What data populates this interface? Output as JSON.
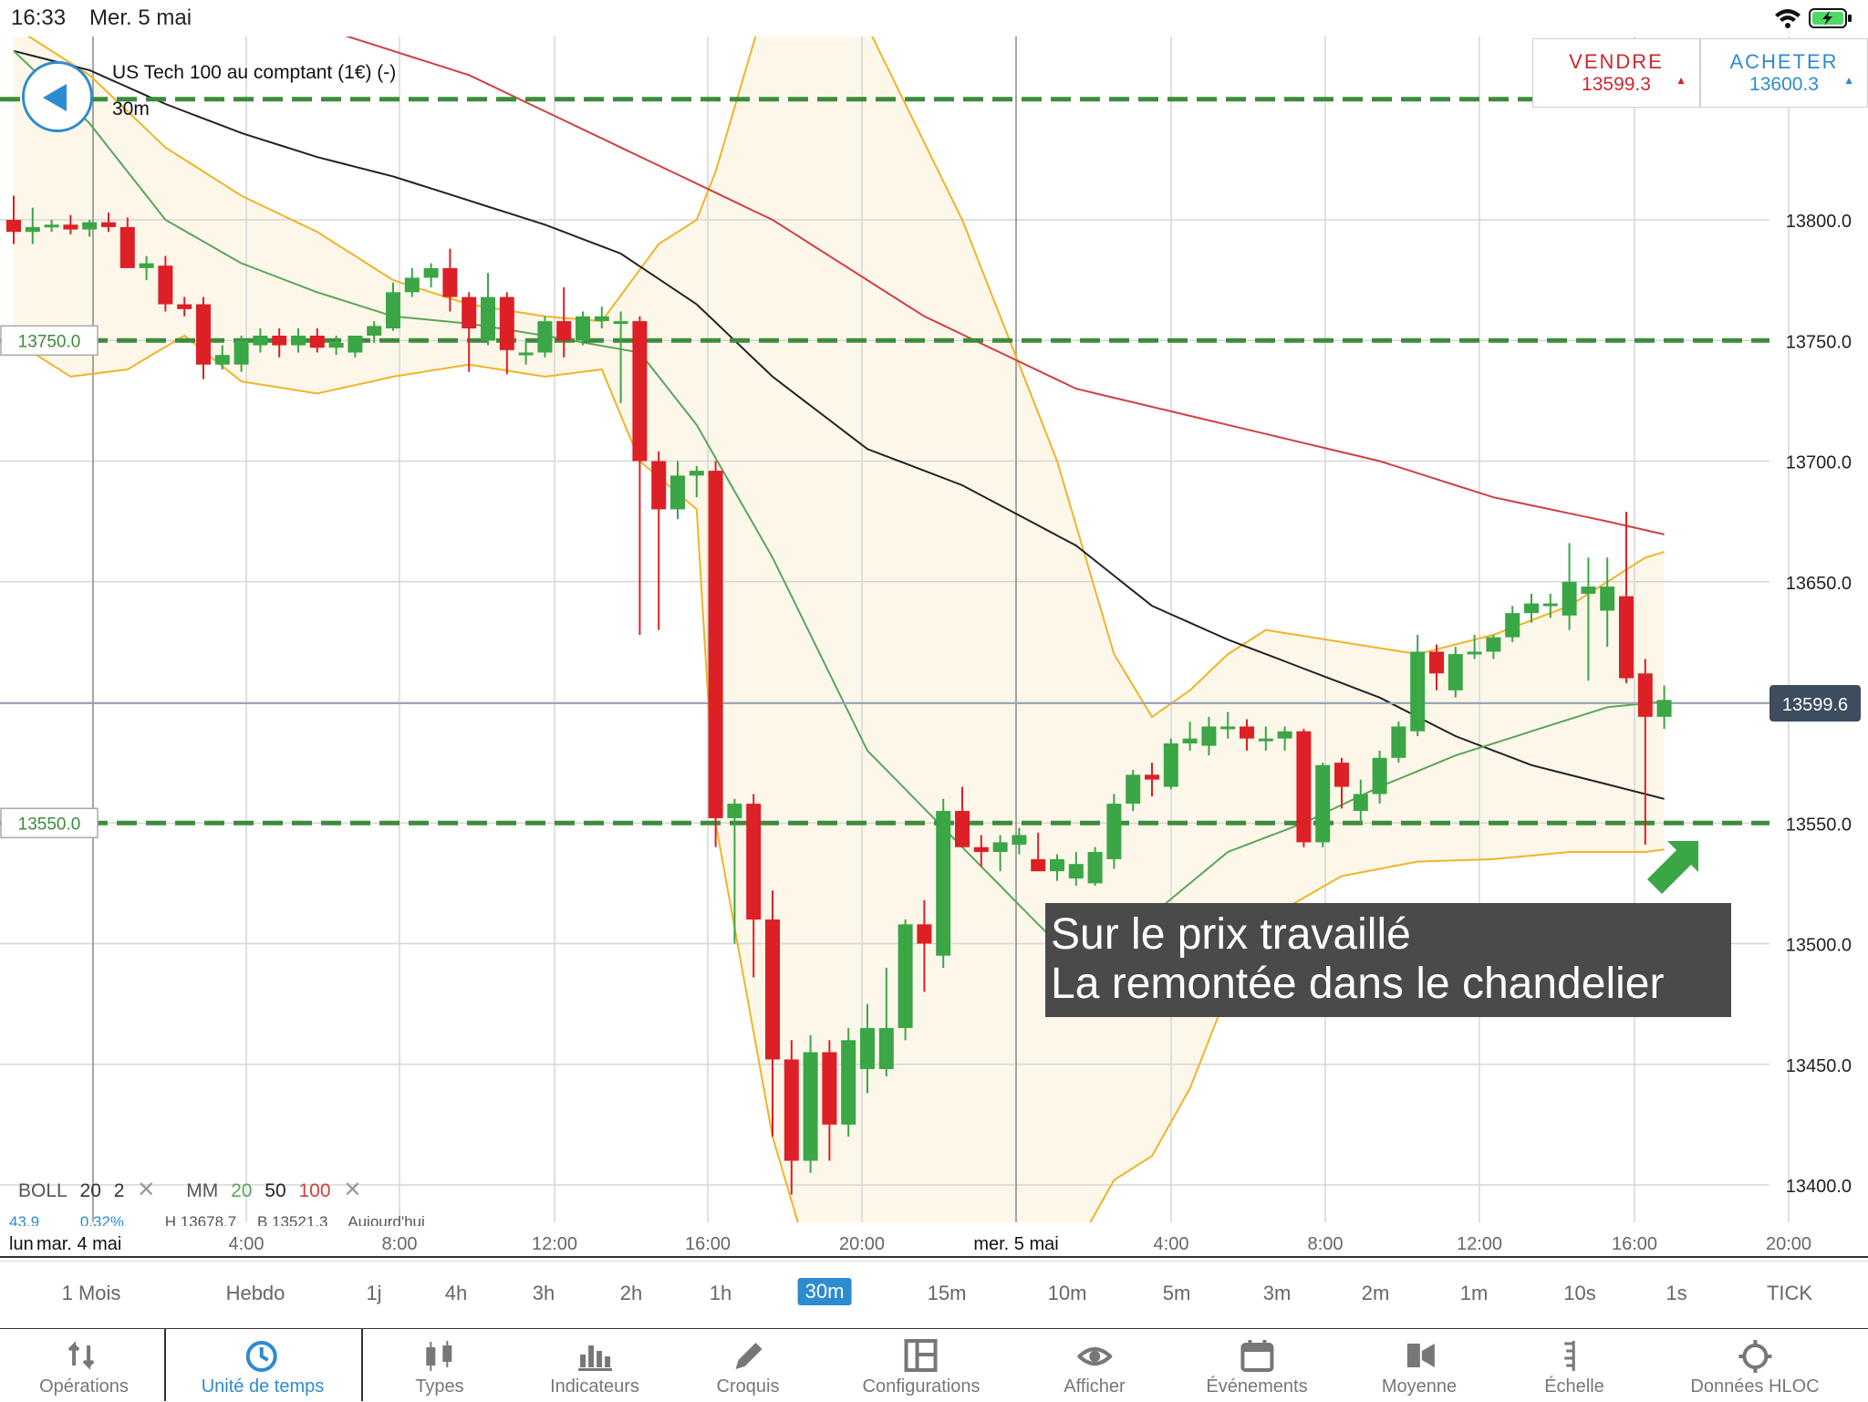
{
  "status": {
    "time": "16:33",
    "date": "Mer. 5 mai"
  },
  "instrument": {
    "name": "US Tech 100 au comptant (1€) (-)",
    "interval": "30m"
  },
  "sell": {
    "label": "VENDRE",
    "price": "13599.3"
  },
  "buy": {
    "label": "ACHETER",
    "price": "13600.3"
  },
  "annotation": {
    "line1": "Sur le prix travaillé",
    "line2": "La remontée dans le chandelier"
  },
  "indicators": {
    "boll": "BOLL",
    "boll_p1": "20",
    "boll_p2": "2",
    "mm": "MM",
    "mm1": "20",
    "mm2": "50",
    "mm3": "100"
  },
  "stats": {
    "a": "43.9",
    "b": "0.32%",
    "h": "H 13678.7",
    "l": "B 13521.3",
    "today": "Aujourd'hui"
  },
  "timeframes": [
    "1 Mois",
    "Hebdo",
    "1j",
    "4h",
    "3h",
    "2h",
    "1h",
    "30m",
    "15m",
    "10m",
    "5m",
    "3m",
    "2m",
    "1m",
    "10s",
    "1s",
    "TICK"
  ],
  "active_timeframe": "30m",
  "toolbar": [
    {
      "label": "Opérations",
      "icon": "arrows-updown-icon"
    },
    {
      "label": "Unité de temps",
      "icon": "clock-icon"
    },
    {
      "label": "Types",
      "icon": "candles-icon"
    },
    {
      "label": "Indicateurs",
      "icon": "bars-icon"
    },
    {
      "label": "Croquis",
      "icon": "pencil-icon"
    },
    {
      "label": "Configurations",
      "icon": "layout-icon"
    },
    {
      "label": "Afficher",
      "icon": "eye-icon"
    },
    {
      "label": "Événements",
      "icon": "calendar-icon"
    },
    {
      "label": "Moyenne",
      "icon": "flag-icon"
    },
    {
      "label": "Échelle",
      "icon": "scale-icon"
    },
    {
      "label": "Données HLOC",
      "icon": "crosshair-icon"
    }
  ],
  "colors": {
    "up": "#3aa645",
    "down": "#dd1f26",
    "boll": "#f0b429",
    "mm20": "#5aa55a",
    "mm50": "#222222",
    "mm100": "#d04040",
    "accent": "#2d8bd0",
    "level": "#3c8c3c"
  },
  "chart_data": {
    "type": "candlestick",
    "ylim": [
      13375,
      13880
    ],
    "y_ticks": [
      "13800.0",
      "13750.0",
      "13700.0",
      "13650.0",
      "13600.0",
      "13550.0",
      "13500.0",
      "13450.0",
      "13400.0"
    ],
    "x_labels": [
      "lun",
      "mar. 4 mai",
      "4:00",
      "8:00",
      "12:00",
      "16:00",
      "20:00",
      "mer. 5 mai",
      "4:00",
      "8:00",
      "12:00",
      "16:00",
      "20:00"
    ],
    "current_price": "13599.6",
    "levels": [
      "13750.0",
      "13550.0"
    ],
    "top_level": "13850.0",
    "candles": [
      [
        13800,
        13810,
        13790,
        13795
      ],
      [
        13795,
        13805,
        13790,
        13797
      ],
      [
        13797,
        13800,
        13795,
        13798
      ],
      [
        13798,
        13802,
        13794,
        13796
      ],
      [
        13796,
        13800,
        13793,
        13799
      ],
      [
        13799,
        13803,
        13795,
        13797
      ],
      [
        13797,
        13801,
        13780,
        13780
      ],
      [
        13780,
        13785,
        13775,
        13782
      ],
      [
        13781,
        13785,
        13762,
        13765
      ],
      [
        13765,
        13768,
        13760,
        13763
      ],
      [
        13765,
        13768,
        13734,
        13740
      ],
      [
        13740,
        13748,
        13738,
        13744
      ],
      [
        13740,
        13752,
        13737,
        13750
      ],
      [
        13748,
        13755,
        13745,
        13752
      ],
      [
        13752,
        13755,
        13743,
        13748
      ],
      [
        13748,
        13755,
        13745,
        13752
      ],
      [
        13752,
        13755,
        13745,
        13747
      ],
      [
        13747,
        13752,
        13744,
        13749
      ],
      [
        13745,
        13752,
        13743,
        13752
      ],
      [
        13752,
        13758,
        13749,
        13756
      ],
      [
        13755,
        13774,
        13754,
        13770
      ],
      [
        13770,
        13780,
        13768,
        13776
      ],
      [
        13776,
        13782,
        13772,
        13780
      ],
      [
        13780,
        13788,
        13762,
        13768
      ],
      [
        13768,
        13770,
        13737,
        13755
      ],
      [
        13750,
        13778,
        13748,
        13768
      ],
      [
        13768,
        13770,
        13736,
        13746
      ],
      [
        13744,
        13750,
        13740,
        13745
      ],
      [
        13745,
        13760,
        13743,
        13758
      ],
      [
        13758,
        13772,
        13743,
        13750
      ],
      [
        13750,
        13762,
        13748,
        13760
      ],
      [
        13758,
        13764,
        13755,
        13760
      ],
      [
        13758,
        13762,
        13724,
        13758
      ],
      [
        13758,
        13760,
        13628,
        13700
      ],
      [
        13700,
        13704,
        13630,
        13680
      ],
      [
        13680,
        13700,
        13676,
        13694
      ],
      [
        13694,
        13698,
        13685,
        13696
      ],
      [
        13696,
        13700,
        13540,
        13552
      ],
      [
        13552,
        13560,
        13500,
        13558
      ],
      [
        13558,
        13562,
        13486,
        13510
      ],
      [
        13510,
        13522,
        13420,
        13452
      ],
      [
        13452,
        13460,
        13396,
        13410
      ],
      [
        13410,
        13462,
        13405,
        13455
      ],
      [
        13455,
        13460,
        13410,
        13425
      ],
      [
        13425,
        13465,
        13420,
        13460
      ],
      [
        13448,
        13475,
        13438,
        13465
      ],
      [
        13448,
        13490,
        13445,
        13465
      ],
      [
        13465,
        13510,
        13460,
        13508
      ],
      [
        13508,
        13518,
        13480,
        13500
      ],
      [
        13495,
        13560,
        13490,
        13555
      ],
      [
        13555,
        13565,
        13540,
        13540
      ],
      [
        13540,
        13545,
        13532,
        13538
      ],
      [
        13538,
        13545,
        13530,
        13542
      ],
      [
        13541,
        13548,
        13537,
        13545
      ],
      [
        13535,
        13546,
        13530,
        13530
      ],
      [
        13530,
        13537,
        13526,
        13535
      ],
      [
        13527,
        13538,
        13524,
        13533
      ],
      [
        13525,
        13540,
        13524,
        13538
      ],
      [
        13535,
        13562,
        13531,
        13558
      ],
      [
        13558,
        13572,
        13555,
        13570
      ],
      [
        13570,
        13575,
        13561,
        13568
      ],
      [
        13565,
        13585,
        13564,
        13583
      ],
      [
        13583,
        13592,
        13580,
        13585
      ],
      [
        13582,
        13594,
        13578,
        13590
      ],
      [
        13590,
        13596,
        13585,
        13590
      ],
      [
        13590,
        13593,
        13580,
        13585
      ],
      [
        13585,
        13590,
        13580,
        13585
      ],
      [
        13585,
        13590,
        13580,
        13588
      ],
      [
        13588,
        13589,
        13540,
        13542
      ],
      [
        13542,
        13575,
        13540,
        13574
      ],
      [
        13575,
        13577,
        13556,
        13565
      ],
      [
        13555,
        13568,
        13550,
        13562
      ],
      [
        13562,
        13580,
        13558,
        13577
      ],
      [
        13577,
        13592,
        13575,
        13590
      ],
      [
        13588,
        13628,
        13586,
        13621
      ],
      [
        13621,
        13624,
        13605,
        13612
      ],
      [
        13605,
        13623,
        13602,
        13620
      ],
      [
        13620,
        13628,
        13618,
        13621
      ],
      [
        13621,
        13628,
        13618,
        13627
      ],
      [
        13627,
        13640,
        13625,
        13637
      ],
      [
        13637,
        13645,
        13633,
        13641
      ],
      [
        13640,
        13645,
        13635,
        13641
      ],
      [
        13636,
        13666,
        13630,
        13650
      ],
      [
        13645,
        13660,
        13609,
        13648
      ],
      [
        13638,
        13660,
        13623,
        13648
      ],
      [
        13644,
        13679,
        13608,
        13610
      ],
      [
        13612,
        13618,
        13541,
        13594
      ],
      [
        13594,
        13607,
        13589,
        13601
      ]
    ]
  }
}
